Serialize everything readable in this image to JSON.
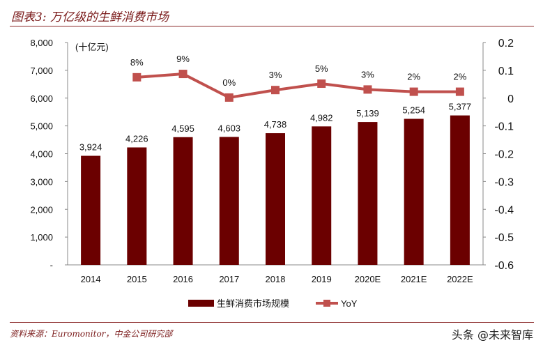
{
  "header": {
    "title": "图表3: 万亿级的生鲜消费市场"
  },
  "footer": {
    "source": "资料来源：Euromonitor，中金公司研究部",
    "watermark": "头条 @未来智库"
  },
  "chart_data": {
    "type": "bar+line",
    "categories": [
      "2014",
      "2015",
      "2016",
      "2017",
      "2018",
      "2019",
      "2020E",
      "2021E",
      "2022E"
    ],
    "unit_label": "(十亿元)",
    "series": [
      {
        "name": "生鲜消费市场规模",
        "type": "bar",
        "axis": "left",
        "color": "#6b0000",
        "values": [
          3924,
          4226,
          4595,
          4603,
          4738,
          4982,
          5139,
          5254,
          5377
        ],
        "labels": [
          "3,924",
          "4,226",
          "4,595",
          "4,603",
          "4,738",
          "4,982",
          "5,139",
          "5,254",
          "5,377"
        ]
      },
      {
        "name": "YoY",
        "type": "line",
        "axis": "right",
        "color": "#c0504d",
        "values": [
          null,
          0.075,
          0.087,
          0.002,
          0.029,
          0.052,
          0.031,
          0.023,
          0.023
        ],
        "labels": [
          "",
          "8%",
          "9%",
          "0%",
          "3%",
          "5%",
          "3%",
          "2%",
          "2%"
        ]
      }
    ],
    "left_axis": {
      "ylim": [
        0,
        8000
      ],
      "ticks": [
        "-",
        "1,000",
        "2,000",
        "3,000",
        "4,000",
        "5,000",
        "6,000",
        "7,000",
        "8,000"
      ]
    },
    "right_axis": {
      "ylim": [
        -0.6,
        0.2
      ],
      "ticks": [
        "-0.6",
        "-0.5",
        "-0.4",
        "-0.3",
        "-0.2",
        "-0.1",
        "0",
        "0.1",
        "0.2"
      ]
    },
    "legend": "bottom",
    "grid": false
  }
}
